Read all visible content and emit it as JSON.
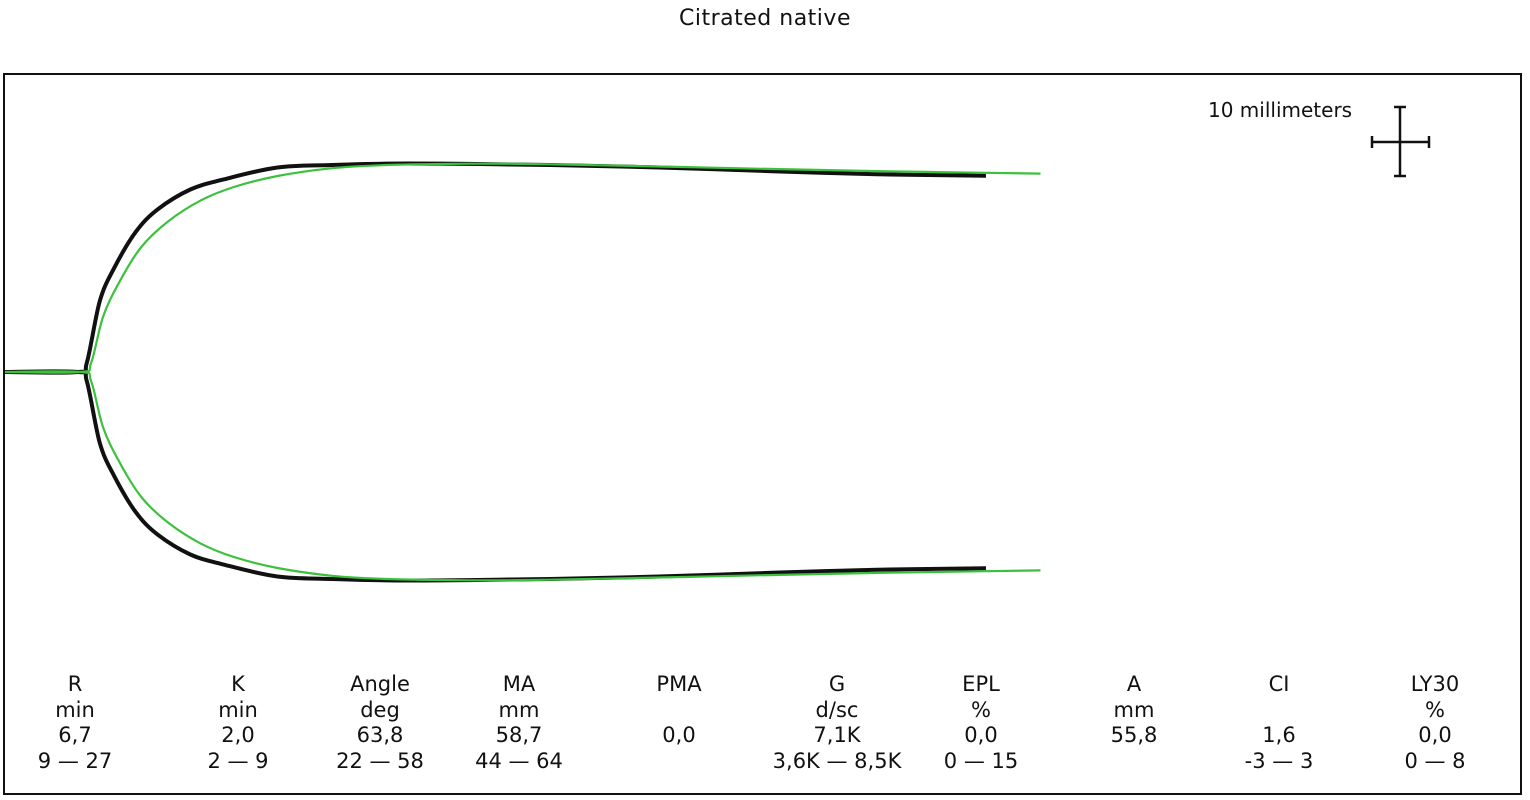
{
  "title": "Citrated native",
  "scale_label": "10 millimeters",
  "colors": {
    "sample_trace": "#111111",
    "reference_trace": "#3cc13c",
    "frame": "#111111"
  },
  "chart_data": {
    "type": "line",
    "title": "Citrated native",
    "xlabel": "",
    "ylabel": "",
    "grid": false,
    "amplitude_unit": "mm",
    "series": [
      {
        "color": "#111111",
        "x": [
          0,
          6.7,
          7.5,
          8.7,
          10,
          12,
          14,
          17,
          20,
          25,
          30,
          35,
          40,
          45,
          50,
          60,
          70,
          80,
          90
        ],
        "amplitude": [
          0,
          0,
          2.6,
          20,
          29.2,
          39.5,
          45.8,
          51.4,
          54.2,
          57.6,
          58.3,
          58.7,
          58.7,
          58.5,
          58.3,
          57.6,
          56.6,
          55.7,
          55.3
        ]
      },
      {
        "color": "#3cc13c",
        "x": [
          0,
          6.9,
          7.9,
          9,
          10.5,
          12.5,
          15,
          18,
          21,
          25,
          30,
          35,
          40,
          45,
          50,
          60,
          70,
          80,
          90,
          95
        ],
        "amplitude": [
          0,
          0,
          2.6,
          15.6,
          25.4,
          35.2,
          42.5,
          48.4,
          52.1,
          55.2,
          57.4,
          58.3,
          58.6,
          58.7,
          58.5,
          57.9,
          57.2,
          56.6,
          56.1,
          55.9
        ]
      }
    ],
    "xlim": [
      0,
      140
    ],
    "ylim": [
      -70,
      70
    ]
  },
  "parameters": [
    {
      "name": "R",
      "unit": "min",
      "value": "6,7",
      "range": "9 — 27"
    },
    {
      "name": "K",
      "unit": "min",
      "value": "2,0",
      "range": "2 — 9"
    },
    {
      "name": "Angle",
      "unit": "deg",
      "value": "63,8",
      "range": "22 — 58"
    },
    {
      "name": "MA",
      "unit": "mm",
      "value": "58,7",
      "range": "44 — 64"
    },
    {
      "name": "PMA",
      "unit": "",
      "value": "0,0",
      "range": ""
    },
    {
      "name": "G",
      "unit": "d/sc",
      "value": "7,1K",
      "range": "3,6K — 8,5K"
    },
    {
      "name": "EPL",
      "unit": "%",
      "value": "0,0",
      "range": "0 — 15"
    },
    {
      "name": "A",
      "unit": "mm",
      "value": "55,8",
      "range": ""
    },
    {
      "name": "CI",
      "unit": "",
      "value": "1,6",
      "range": "-3 — 3"
    },
    {
      "name": "LY30",
      "unit": "%",
      "value": "0,0",
      "range": "0 — 8"
    }
  ]
}
